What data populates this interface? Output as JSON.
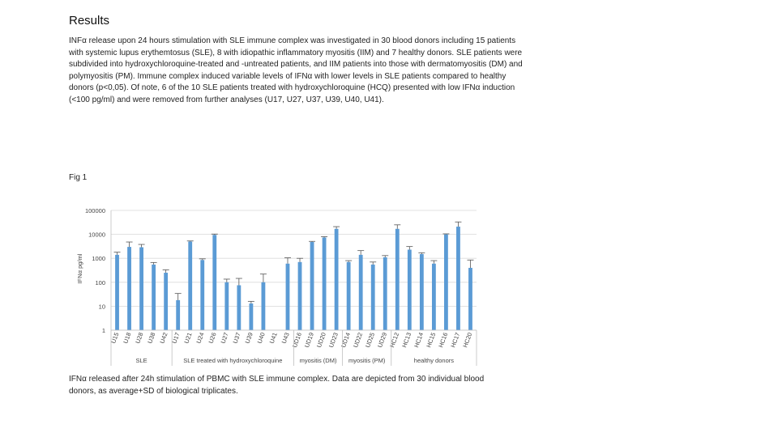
{
  "heading": "Results",
  "paragraph": "INFα release upon 24 hours stimulation with SLE immune complex was investigated in 30 blood donors including 15 patients with systemic lupus erythemtosus (SLE), 8 with idiopathic inflammatory myositis (IIM) and 7 healthy donors. SLE patients were subdivided into hydroxychloroquine-treated and -untreated patients, and IIM patients into those with dermatomyositis (DM) and polymyositis (PM). Immune complex induced variable levels of IFNα with lower levels in SLE patients compared to healthy donors (p<0,05). Of note, 6 of the 10 SLE patients treated with hydroxychloroquine (HCQ) presented with low IFNα induction (<100 pg/ml) and were removed from further analyses (U17, U27, U37, U39, U40, U41).",
  "fig_label": "Fig 1",
  "caption": "IFNα released after 24h stimulation of PBMC with SLE immune complex. Data are depicted from 30 individual blood donors, as average+SD of biological triplicates.",
  "chart_data": {
    "type": "bar",
    "ylabel": "IFNα pg/ml",
    "yscale": "log",
    "ylim": [
      1,
      100000
    ],
    "yticks": [
      "1",
      "10",
      "100",
      "1000",
      "10000",
      "100000"
    ],
    "grid": true,
    "bar_color": "#5b9bd5",
    "categories": [
      "U15",
      "U18",
      "U28",
      "U38",
      "U42",
      "U17",
      "U21",
      "U24",
      "U26",
      "U27",
      "U37",
      "U39",
      "U40",
      "U41",
      "U43",
      "UD16",
      "UD19",
      "UD20",
      "UD23",
      "UD14",
      "UD22",
      "UD25",
      "UD29",
      "HC12",
      "HC13",
      "HC14",
      "HC15",
      "HC16",
      "HC17",
      "HC20"
    ],
    "values": [
      1400,
      3000,
      2900,
      550,
      250,
      18,
      5000,
      850,
      9500,
      100,
      75,
      13,
      100,
      1,
      600,
      700,
      4800,
      7400,
      17000,
      700,
      1400,
      550,
      1100,
      17000,
      2300,
      1500,
      600,
      10000,
      21000,
      400
    ],
    "errors": [
      400,
      1800,
      900,
      120,
      80,
      16,
      300,
      100,
      800,
      35,
      70,
      3,
      120,
      0,
      450,
      300,
      300,
      600,
      4000,
      100,
      700,
      150,
      200,
      8000,
      800,
      200,
      200,
      500,
      12000,
      450
    ],
    "groups": [
      {
        "name": "SLE",
        "start": 0,
        "end": 4
      },
      {
        "name": "SLE treated with hydroxychloroquine",
        "start": 5,
        "end": 14
      },
      {
        "name": "myositis (DM)",
        "start": 15,
        "end": 18
      },
      {
        "name": "myositis (PM)",
        "start": 19,
        "end": 22
      },
      {
        "name": "healthy donors",
        "start": 23,
        "end": 29
      }
    ]
  }
}
